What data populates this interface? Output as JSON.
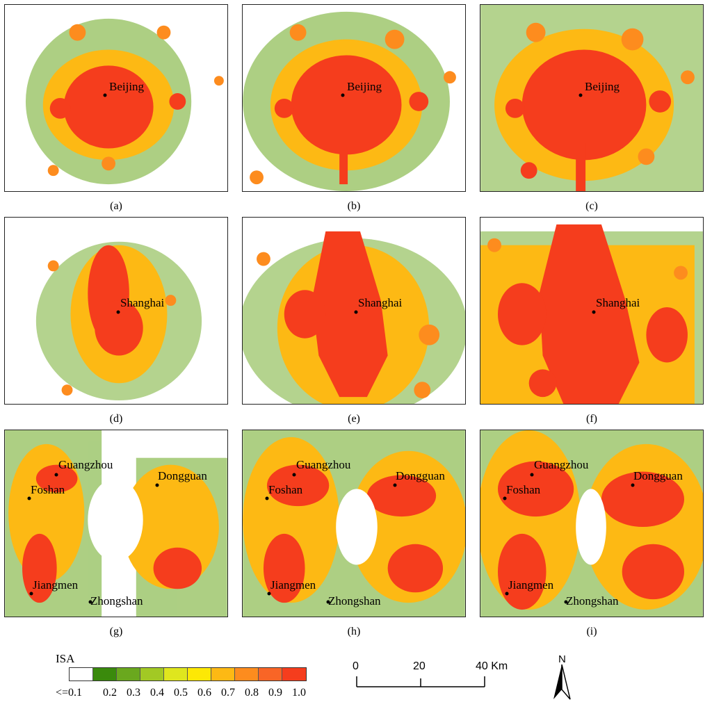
{
  "panels": [
    {
      "caption": "(a)",
      "cities": [
        {
          "name": "Beijing"
        }
      ]
    },
    {
      "caption": "(b)",
      "cities": [
        {
          "name": "Beijing"
        }
      ]
    },
    {
      "caption": "(c)",
      "cities": [
        {
          "name": "Beijing"
        }
      ]
    },
    {
      "caption": "(d)",
      "cities": [
        {
          "name": "Shanghai"
        }
      ]
    },
    {
      "caption": "(e)",
      "cities": [
        {
          "name": "Shanghai"
        }
      ]
    },
    {
      "caption": "(f)",
      "cities": [
        {
          "name": "Shanghai"
        }
      ]
    },
    {
      "caption": "(g)",
      "cities": [
        {
          "name": "Guangzhou"
        },
        {
          "name": "Foshan"
        },
        {
          "name": "Dongguan"
        },
        {
          "name": "Jiangmen"
        },
        {
          "name": "Zhongshan"
        }
      ]
    },
    {
      "caption": "(h)",
      "cities": [
        {
          "name": "Guangzhou"
        },
        {
          "name": "Foshan"
        },
        {
          "name": "Dongguan"
        },
        {
          "name": "Jiangmen"
        },
        {
          "name": "Zhongshan"
        }
      ]
    },
    {
      "caption": "(i)",
      "cities": [
        {
          "name": "Guangzhou"
        },
        {
          "name": "Foshan"
        },
        {
          "name": "Dongguan"
        },
        {
          "name": "Jiangmen"
        },
        {
          "name": "Zhongshan"
        }
      ]
    }
  ],
  "legend": {
    "title": "ISA",
    "classes": [
      {
        "label": "<=0.1",
        "color": "#ffffff"
      },
      {
        "label": "0.2",
        "color": "#3a8a0c"
      },
      {
        "label": "0.3",
        "color": "#6aa81e"
      },
      {
        "label": "0.4",
        "color": "#a2c924"
      },
      {
        "label": "0.5",
        "color": "#dfe61e"
      },
      {
        "label": "0.6",
        "color": "#fde805"
      },
      {
        "label": "0.7",
        "color": "#fdb914"
      },
      {
        "label": "0.8",
        "color": "#fd8c1e"
      },
      {
        "label": "0.9",
        "color": "#f96526"
      },
      {
        "label": "1.0",
        "color": "#f53d1d"
      }
    ]
  },
  "scale": {
    "ticks": [
      "0",
      "20",
      "40 Km"
    ]
  },
  "north": {
    "label": "N"
  }
}
